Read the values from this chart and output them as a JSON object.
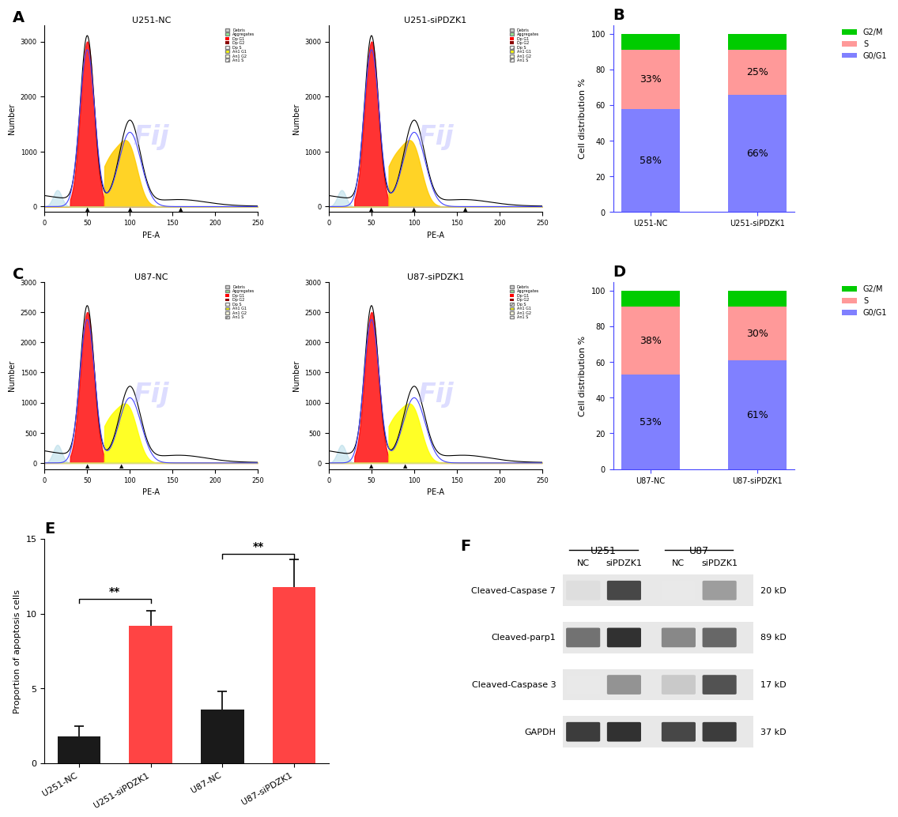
{
  "panel_B": {
    "categories": [
      "U251-NC",
      "U251-siPDZK1"
    ],
    "G0G1": [
      58,
      66
    ],
    "S": [
      33,
      25
    ],
    "G2M": [
      9,
      9
    ],
    "colors": {
      "G0G1": "#8080ff",
      "S": "#ff9999",
      "G2M": "#00cc00"
    },
    "ylabel": "Cell distribution %",
    "title": "B",
    "text_G0G1": [
      "58%",
      "66%"
    ],
    "text_S": [
      "33%",
      "25%"
    ]
  },
  "panel_D": {
    "categories": [
      "U87-NC",
      "U87-siPDZK1"
    ],
    "G0G1": [
      53,
      61
    ],
    "S": [
      38,
      30
    ],
    "G2M": [
      9,
      9
    ],
    "colors": {
      "G0G1": "#8080ff",
      "S": "#ff9999",
      "G2M": "#00cc00"
    },
    "ylabel": "Cell distribution %",
    "title": "D",
    "text_G0G1": [
      "53%",
      "61%"
    ],
    "text_S": [
      "38%",
      "30%"
    ]
  },
  "panel_E": {
    "categories": [
      "U251-NC",
      "U251-siPDZK1",
      "U87-NC",
      "U87-siPDZK1"
    ],
    "values": [
      1.8,
      9.2,
      3.6,
      11.8
    ],
    "errors": [
      0.7,
      1.0,
      1.2,
      1.8
    ],
    "colors": [
      "#1a1a1a",
      "#ff4444",
      "#1a1a1a",
      "#ff4444"
    ],
    "ylabel": "Proportion of apoptosis cells",
    "title": "E",
    "ylim": [
      0,
      15
    ],
    "yticks": [
      0,
      5,
      10,
      15
    ]
  },
  "panel_F": {
    "title": "F",
    "proteins": [
      "Cleaved-Caspase 7",
      "Cleaved-parp1",
      "Cleaved-Caspase 3",
      "GAPDH"
    ],
    "kd_labels": [
      "20 kD",
      "89 kD",
      "17 kD",
      "37 kD"
    ],
    "group_labels": [
      "U251",
      "U87"
    ],
    "lane_labels": [
      "NC",
      "siPDZK1",
      "NC",
      "siPDZK1"
    ],
    "U251_header": "U251",
    "U87_header": "U87"
  },
  "panel_labels": {
    "A": "A",
    "B": "B",
    "C": "C",
    "D": "D",
    "E": "E",
    "F": "F"
  },
  "flow_cytometry": {
    "panels": [
      "U251-NC",
      "U251-siPDZK1",
      "U87-NC",
      "U87-siPDZK1"
    ],
    "yticks_top": [
      0,
      1000,
      2000,
      3000
    ],
    "yticks_bottom": [
      0,
      1000,
      2000,
      3000
    ],
    "xlabel": "PE-A",
    "ylabel": "Number"
  },
  "background_color": "#ffffff"
}
